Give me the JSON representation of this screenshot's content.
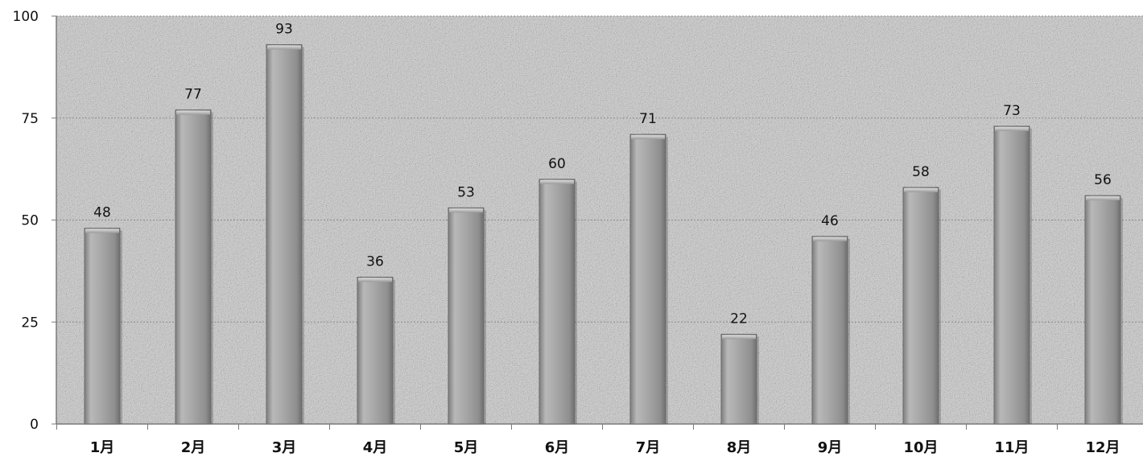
{
  "chart_data": {
    "type": "bar",
    "title": "",
    "xlabel": "",
    "ylabel": "",
    "categories": [
      "1月",
      "2月",
      "3月",
      "4月",
      "5月",
      "6月",
      "7月",
      "8月",
      "9月",
      "10月",
      "11月",
      "12月"
    ],
    "values": [
      48,
      77,
      93,
      36,
      53,
      60,
      71,
      22,
      46,
      58,
      73,
      56
    ],
    "ylim": [
      0,
      100
    ],
    "yticks": [
      0,
      25,
      50,
      75,
      100
    ],
    "ytick_labels": [
      "0",
      "25",
      "50",
      "75",
      "100"
    ],
    "data_labels": [
      "48",
      "77",
      "93",
      "36",
      "53",
      "60",
      "71",
      "22",
      "46",
      "58",
      "73",
      "56"
    ],
    "grid": true,
    "legend": "none",
    "colors": {
      "bar": "#a3a3a3",
      "plot_background": "#d6d6d6",
      "gridline": "#8c8c8c",
      "axis": "#7a7a7a"
    }
  }
}
